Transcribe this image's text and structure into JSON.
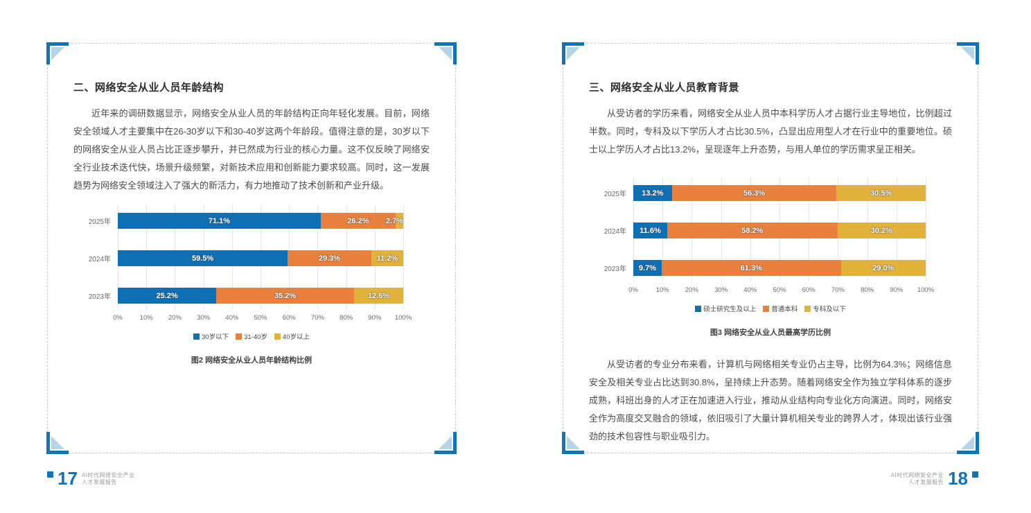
{
  "document": {
    "pages": [
      {
        "page_number": "17",
        "section_title": "二、网络安全从业人员年龄结构",
        "paragraphs": [
          "近年来的调研数据显示，网络安全从业人员的年龄结构正向年轻化发展。目前，网络安全领域人才主要集中在26-30岁以下和30-40岁这两个年龄段。值得注意的是，30岁以下的网络安全从业人员占比正逐步攀升，并已然成为行业的核心力量。这不仅反映了网络安全行业技术迭代快，场景升级频繁，对新技术应用和创新能力要求较高。同时，这一发展趋势为网络安全领域注入了强大的新活力，有力地推动了技术创新和产业升级。"
        ],
        "chart_caption": "图2 网络安全从业人员年龄结构比例",
        "footer_line1": "AI时代网络安全产业",
        "footer_line2": "人才发展报告"
      },
      {
        "page_number": "18",
        "section_title": "三、网络安全从业人员教育背景",
        "paragraphs": [
          "从受访者的学历来看，网络安全从业人员中本科学历人才占据行业主导地位，比例超过半数。同时，专科及以下学历人才占比30.5%，凸显出应用型人才在行业中的重要地位。硕士以上学历人才占比13.2%，呈现逐年上升态势，与用人单位的学历需求呈正相关。"
        ],
        "chart_caption": "图3 网络安全从业人员最高学历比例",
        "paragraph_after_chart": "从受访者的专业分布来看，计算机与网络相关专业仍占主导，比例为64.3%；网络信息安全及相关专业占比达到30.8%，呈持续上升态势。随着网络安全作为独立学科体系的逐步成熟，科班出身的人才正在加速进入行业，推动从业结构向专业化方向演进。同时，网络安全作为高度交叉融合的领域，依旧吸引了大量计算机相关专业的跨界人才，体现出该行业强劲的技术包容性与职业吸引力。",
        "footer_line1": "AI时代网络安全产业",
        "footer_line2": "人才发展报告"
      }
    ]
  },
  "colors": {
    "series": [
      "#0e6fb3",
      "#e8813e",
      "#e2b23b"
    ],
    "accent_blue": "#1272b6",
    "corner_triangle": "#b7d3e8"
  },
  "chart_data": [
    {
      "type": "bar",
      "orientation": "horizontal-stacked",
      "title": "图2 网络安全从业人员年龄结构比例",
      "categories": [
        "2025年",
        "2024年",
        "2023年"
      ],
      "series": [
        {
          "name": "30岁以下",
          "values": [
            71.1,
            59.5,
            25.2
          ]
        },
        {
          "name": "31-40岁",
          "values": [
            26.2,
            29.3,
            35.2
          ]
        },
        {
          "name": "40岁以上",
          "values": [
            2.7,
            11.2,
            12.6
          ]
        }
      ],
      "x_ticks": [
        "0%",
        "10%",
        "20%",
        "30%",
        "40%",
        "50%",
        "60%",
        "70%",
        "80%",
        "90%",
        "100%"
      ],
      "xlim": [
        0,
        100
      ],
      "grid": true,
      "legend_position": "bottom",
      "value_suffix": "%"
    },
    {
      "type": "bar",
      "orientation": "horizontal-stacked",
      "title": "图3 网络安全从业人员最高学历比例",
      "categories": [
        "2025年",
        "2024年",
        "2023年"
      ],
      "series": [
        {
          "name": "硕士研究生及以上",
          "values": [
            13.2,
            11.6,
            9.7
          ]
        },
        {
          "name": "普通本科",
          "values": [
            56.3,
            58.2,
            61.3
          ]
        },
        {
          "name": "专科及以下",
          "values": [
            30.5,
            30.2,
            29.0
          ]
        }
      ],
      "x_ticks": [
        "0%",
        "10%",
        "20%",
        "30%",
        "40%",
        "50%",
        "60%",
        "70%",
        "80%",
        "90%",
        "100%"
      ],
      "xlim": [
        0,
        100
      ],
      "grid": true,
      "legend_position": "bottom",
      "value_suffix": "%"
    }
  ]
}
